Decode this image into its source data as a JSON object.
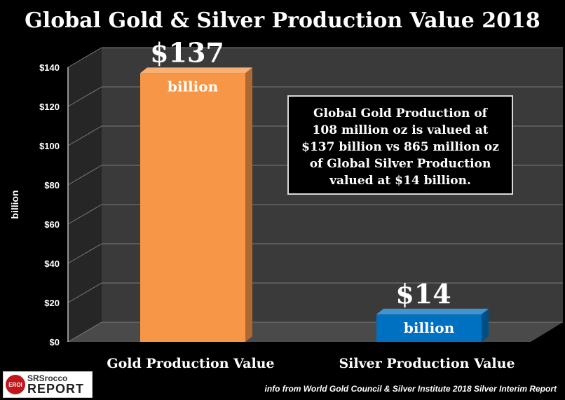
{
  "chart_data": {
    "type": "bar",
    "title": "Global Gold & Silver Production Value 2018",
    "ylabel": "billion",
    "ylim": [
      0,
      140
    ],
    "yticks": [
      0,
      20,
      40,
      60,
      80,
      100,
      120,
      140
    ],
    "ytick_prefix": "$",
    "categories": [
      "Gold Production Value",
      "Silver Production Value"
    ],
    "values": [
      137,
      14
    ],
    "data_labels": [
      "$137",
      "$14"
    ],
    "data_label_units": [
      "billion",
      "billion"
    ],
    "bar_colors": [
      "#f79646",
      "#0070c0"
    ],
    "grid": true,
    "annotation": "Global Gold Production of\n108 million oz is valued at\n$137 billion vs 865 million oz\nof Global Silver Production\nvalued at $14 billion.",
    "source": "info from World Gold Council & Silver Institute 2018 Silver Interim Report"
  },
  "logo": {
    "badge": "EROI",
    "line1": "SRSrocco",
    "line2": "REPORT"
  }
}
